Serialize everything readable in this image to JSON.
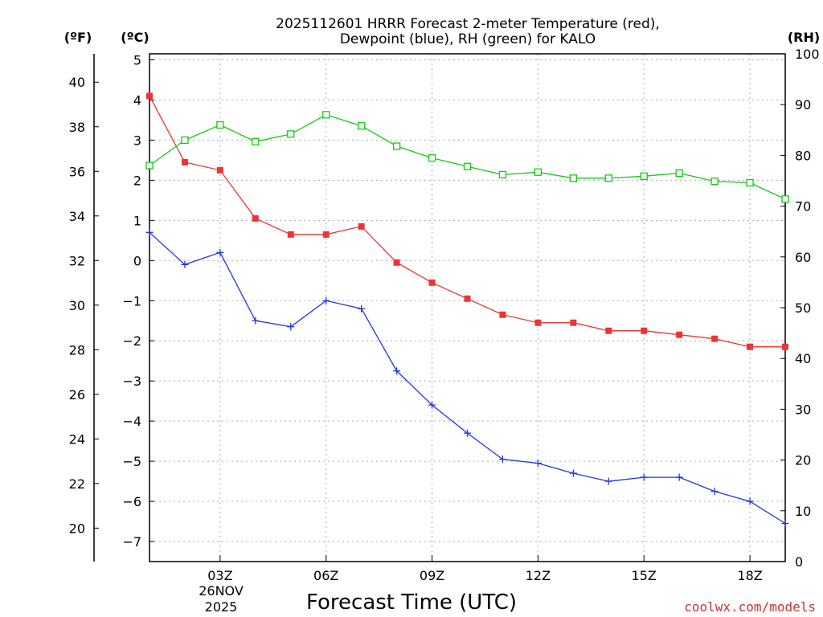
{
  "colors": {
    "temperature": "#ee3333",
    "dewpoint": "#2233ee",
    "rh": "#11cc11",
    "credit": "#cc3333"
  },
  "chart_data": {
    "type": "line",
    "title_line1": "2025112601 HRRR Forecast 2-meter Temperature (red),",
    "title_line2": "Dewpoint (blue), RH (green) for KALO",
    "xlabel": "Forecast Time (UTC)",
    "credit": "coolwx.com/models",
    "axis_units": {
      "fahrenheit": "(ºF)",
      "celsius": "(ºC)",
      "rh": "(RH)"
    },
    "xlim": [
      0,
      18
    ],
    "x_ticks": [
      {
        "x": 2,
        "label": "03Z"
      },
      {
        "x": 5,
        "label": "06Z"
      },
      {
        "x": 8,
        "label": "09Z"
      },
      {
        "x": 11,
        "label": "12Z"
      },
      {
        "x": 14,
        "label": "15Z"
      },
      {
        "x": 17,
        "label": "18Z"
      }
    ],
    "date_label": {
      "day": "26NOV",
      "year": "2025"
    },
    "ylim_celsius": [
      -7.5,
      5.15
    ],
    "celsius_ticks": [
      5,
      4,
      3,
      2,
      1,
      0,
      -1,
      -2,
      -3,
      -4,
      -5,
      -6,
      -7
    ],
    "fahrenheit_ticks": [
      40,
      38,
      36,
      34,
      32,
      30,
      28,
      26,
      24,
      22,
      20
    ],
    "ylim_rh": [
      0,
      100
    ],
    "rh_ticks": [
      100,
      90,
      80,
      70,
      60,
      50,
      40,
      30,
      20,
      10,
      0
    ],
    "x": [
      0,
      1,
      2,
      3,
      4,
      5,
      6,
      7,
      8,
      9,
      10,
      11,
      12,
      13,
      14,
      15,
      16,
      17,
      18
    ],
    "series": [
      {
        "name": "Temperature",
        "axis": "celsius",
        "color_key": "temperature",
        "marker": "filled-square",
        "values": [
          4.1,
          2.45,
          2.25,
          1.05,
          0.65,
          0.65,
          0.85,
          -0.05,
          -0.55,
          -0.95,
          -1.35,
          -1.55,
          -1.55,
          -1.75,
          -1.75,
          -1.85,
          -1.95,
          -2.15,
          -2.15
        ]
      },
      {
        "name": "Dewpoint",
        "axis": "celsius",
        "color_key": "dewpoint",
        "marker": "plus",
        "values": [
          0.7,
          -0.1,
          0.2,
          -1.5,
          -1.65,
          -1.0,
          -1.2,
          -2.75,
          -3.6,
          -4.3,
          -4.95,
          -5.05,
          -5.3,
          -5.5,
          -5.4,
          -5.4,
          -5.75,
          -6.0,
          -6.55
        ]
      },
      {
        "name": "RH",
        "axis": "rh",
        "color_key": "rh",
        "marker": "open-square",
        "values": [
          78,
          83,
          86,
          82.7,
          84.2,
          88,
          85.8,
          81.8,
          79.5,
          77.8,
          76.2,
          76.7,
          75.5,
          75.5,
          75.9,
          76.5,
          74.9,
          74.6,
          71.4
        ]
      }
    ]
  }
}
